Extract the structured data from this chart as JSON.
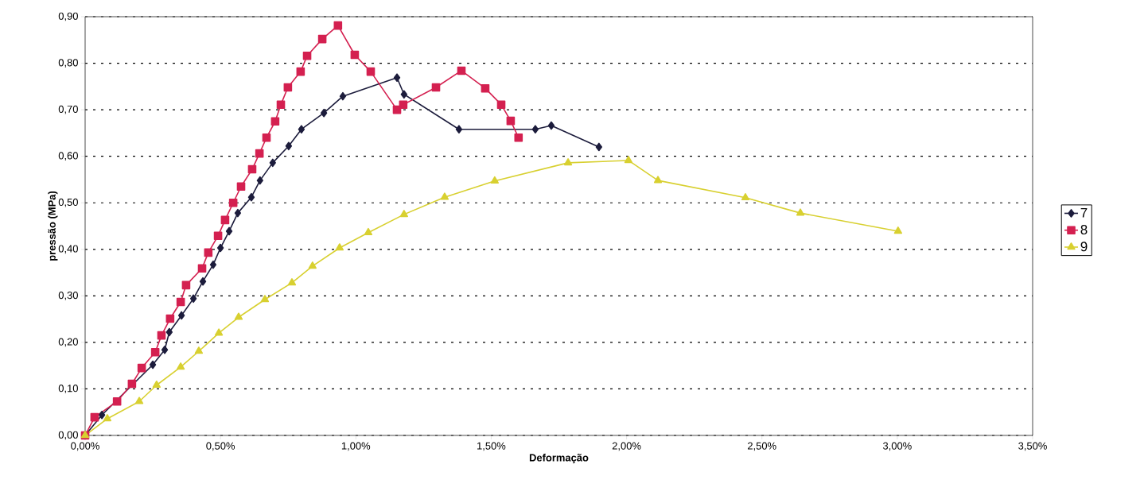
{
  "chart_data": {
    "type": "line",
    "xlabel": "Deformação",
    "ylabel": "pressão (MPa)",
    "xlim": [
      0,
      3.5
    ],
    "ylim": [
      0,
      0.9
    ],
    "xticks": [
      {
        "value": 0,
        "label": "0,00%"
      },
      {
        "value": 0.5,
        "label": "0,50%"
      },
      {
        "value": 1,
        "label": "1,00%"
      },
      {
        "value": 1.5,
        "label": "1,50%"
      },
      {
        "value": 2,
        "label": "2,00%"
      },
      {
        "value": 2.5,
        "label": "2,50%"
      },
      {
        "value": 3,
        "label": "3,00%"
      },
      {
        "value": 3.5,
        "label": "3,50%"
      }
    ],
    "yticks": [
      {
        "value": 0,
        "label": "0,00"
      },
      {
        "value": 0.1,
        "label": "0,10"
      },
      {
        "value": 0.2,
        "label": "0,20"
      },
      {
        "value": 0.3,
        "label": "0,30"
      },
      {
        "value": 0.4,
        "label": "0,40"
      },
      {
        "value": 0.5,
        "label": "0,50"
      },
      {
        "value": 0.6,
        "label": "0,60"
      },
      {
        "value": 0.7,
        "label": "0,70"
      },
      {
        "value": 0.8,
        "label": "0,80"
      },
      {
        "value": 0.9,
        "label": "0,90"
      }
    ],
    "grid": "y",
    "legend": "right",
    "line_style": "solid",
    "series": [
      {
        "name": "7",
        "color": "#1c1c3c",
        "marker": "diamond",
        "x": [
          0,
          0.062,
          0.25,
          0.294,
          0.311,
          0.356,
          0.4,
          0.435,
          0.473,
          0.5,
          0.532,
          0.564,
          0.614,
          0.646,
          0.693,
          0.752,
          0.799,
          0.882,
          0.952,
          1.152,
          1.178,
          1.381,
          1.663,
          1.722,
          1.898
        ],
        "values": [
          0,
          0.044,
          0.152,
          0.184,
          0.222,
          0.258,
          0.294,
          0.331,
          0.367,
          0.403,
          0.439,
          0.478,
          0.512,
          0.548,
          0.586,
          0.622,
          0.658,
          0.693,
          0.729,
          0.769,
          0.733,
          0.658,
          0.658,
          0.666,
          0.62
        ]
      },
      {
        "name": "8",
        "color": "#d42050",
        "marker": "square",
        "x": [
          0,
          0.035,
          0.118,
          0.173,
          0.209,
          0.259,
          0.282,
          0.314,
          0.353,
          0.373,
          0.432,
          0.455,
          0.491,
          0.517,
          0.547,
          0.576,
          0.617,
          0.644,
          0.67,
          0.702,
          0.723,
          0.749,
          0.796,
          0.82,
          0.876,
          0.934,
          0.996,
          1.055,
          1.152,
          1.175,
          1.296,
          1.39,
          1.478,
          1.537,
          1.572,
          1.601
        ],
        "values": [
          0,
          0.039,
          0.073,
          0.111,
          0.145,
          0.179,
          0.215,
          0.251,
          0.287,
          0.323,
          0.359,
          0.393,
          0.429,
          0.463,
          0.5,
          0.535,
          0.572,
          0.606,
          0.64,
          0.675,
          0.711,
          0.748,
          0.782,
          0.816,
          0.852,
          0.881,
          0.818,
          0.782,
          0.7,
          0.711,
          0.748,
          0.784,
          0.746,
          0.711,
          0.676,
          0.64
        ]
      },
      {
        "name": "9",
        "color": "#d8d030",
        "marker": "triangle",
        "x": [
          0,
          0.082,
          0.2,
          0.264,
          0.353,
          0.42,
          0.494,
          0.567,
          0.664,
          0.764,
          0.84,
          0.94,
          1.046,
          1.178,
          1.328,
          1.513,
          1.784,
          2.007,
          2.116,
          2.439,
          2.642,
          3.003
        ],
        "values": [
          0,
          0.036,
          0.073,
          0.108,
          0.147,
          0.181,
          0.22,
          0.254,
          0.292,
          0.328,
          0.364,
          0.403,
          0.436,
          0.475,
          0.512,
          0.547,
          0.586,
          0.591,
          0.548,
          0.511,
          0.478,
          0.439
        ]
      }
    ]
  }
}
